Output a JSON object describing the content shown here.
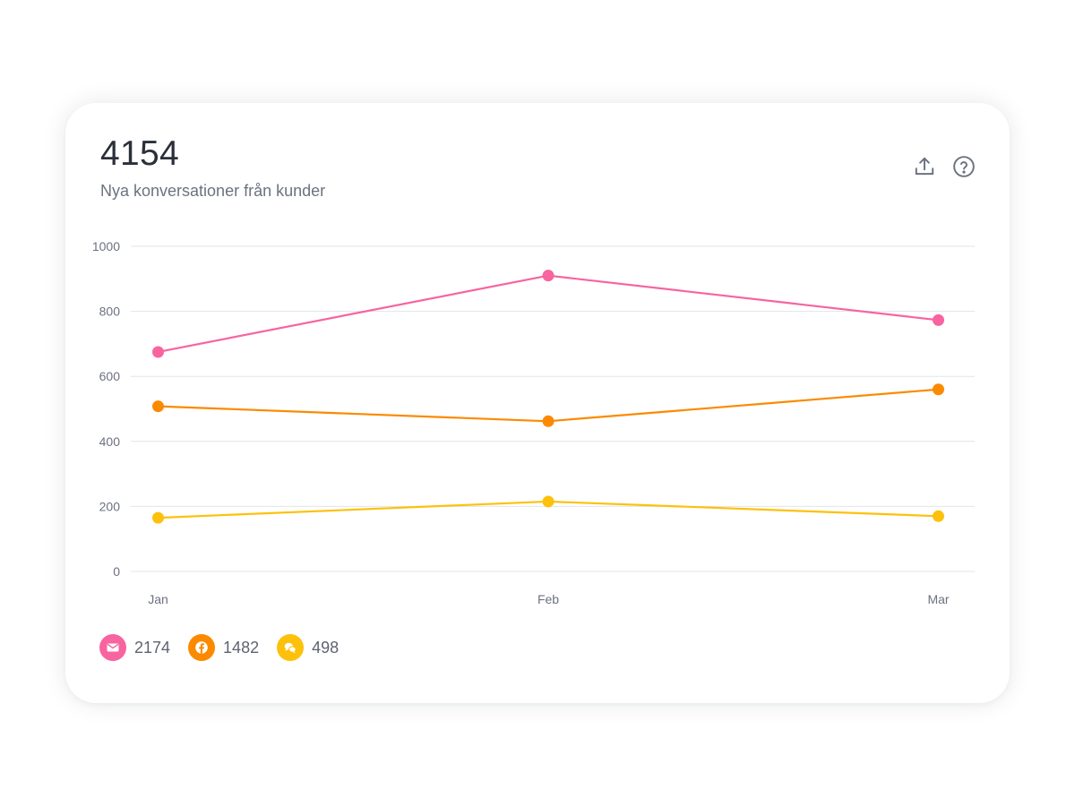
{
  "header": {
    "total": "4154",
    "subtitle": "Nya konversationer från kunder"
  },
  "actions": {
    "export_icon": "upload-icon",
    "help_icon": "help-circle-icon"
  },
  "colors": {
    "email": "#f7649f",
    "facebook": "#fb8a00",
    "chat": "#fdc10c",
    "grid": "#e2e4e9",
    "tick": "#6c7280"
  },
  "chart_data": {
    "type": "line",
    "title": "",
    "xlabel": "",
    "ylabel": "",
    "categories": [
      "Jan",
      "Feb",
      "Mar"
    ],
    "ylim": [
      0,
      1000
    ],
    "yticks": [
      0,
      200,
      400,
      600,
      800,
      1000
    ],
    "grid": true,
    "legend_position": "bottom-left",
    "series": [
      {
        "name": "email",
        "icon": "mail-icon",
        "color": "#f7649f",
        "values": [
          675,
          910,
          773
        ]
      },
      {
        "name": "facebook",
        "icon": "facebook-icon",
        "color": "#fb8a00",
        "values": [
          508,
          462,
          560
        ]
      },
      {
        "name": "chat",
        "icon": "chat-bubbles-icon",
        "color": "#fdc10c",
        "values": [
          165,
          215,
          170
        ]
      }
    ]
  },
  "legend": [
    {
      "icon": "mail-icon",
      "value": "2174"
    },
    {
      "icon": "facebook-icon",
      "value": "1482"
    },
    {
      "icon": "chat-bubbles-icon",
      "value": "498"
    }
  ]
}
